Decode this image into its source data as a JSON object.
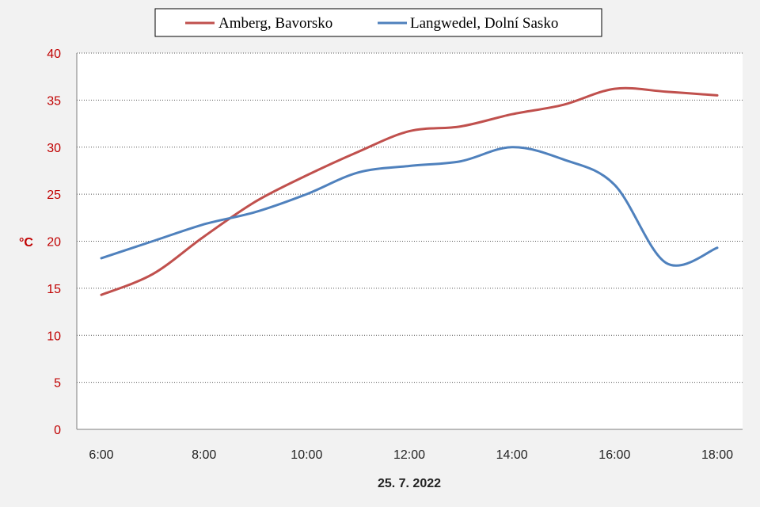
{
  "chart_data": {
    "type": "line",
    "xlabel": "25. 7. 2022",
    "ylabel": "°C",
    "ylim": [
      0,
      40
    ],
    "yticks": [
      0,
      5,
      10,
      15,
      20,
      25,
      30,
      35,
      40
    ],
    "xticks": [
      "6:00",
      "8:00",
      "10:00",
      "12:00",
      "14:00",
      "16:00",
      "18:00"
    ],
    "x": [
      6,
      7,
      8,
      9,
      10,
      11,
      12,
      13,
      14,
      15,
      16,
      17,
      18
    ],
    "grid": true,
    "legend_position": "top",
    "series": [
      {
        "name": "Amberg, Bavorsko",
        "color": "#c0504d",
        "values": [
          14.3,
          16.5,
          20.5,
          24.2,
          27.0,
          29.5,
          31.7,
          32.2,
          33.5,
          34.5,
          36.2,
          35.9,
          35.5
        ]
      },
      {
        "name": "Langwedel, Dolní Sasko",
        "color": "#4f81bd",
        "values": [
          18.2,
          20.0,
          21.8,
          23.1,
          25.0,
          27.3,
          28.0,
          28.5,
          30.0,
          28.7,
          26.0,
          17.7,
          19.3
        ]
      }
    ]
  }
}
